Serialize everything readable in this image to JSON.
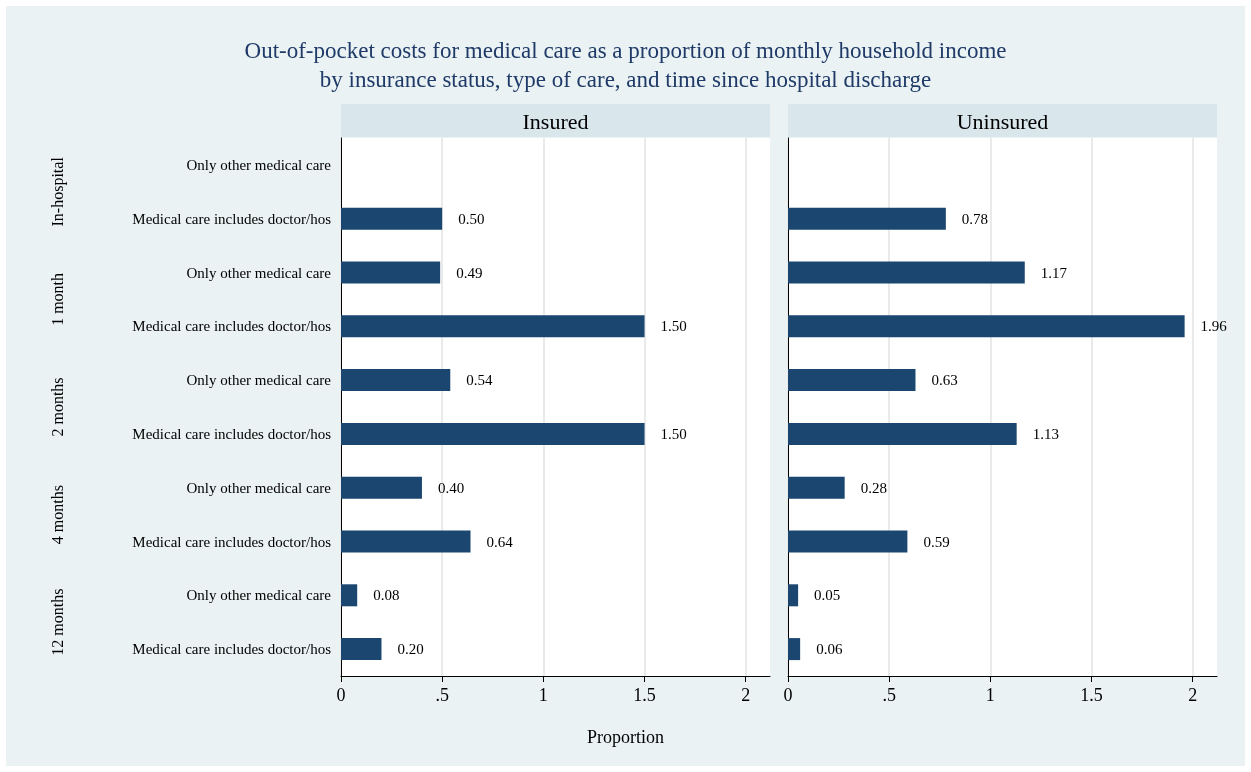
{
  "chart_data": [
    {
      "type": "bar",
      "orientation": "horizontal",
      "title": "Out-of-pocket costs for medical care as a proportion of monthly household income\nby insurance status, type of care, and time since hospital discharge",
      "subtitle": "Insured",
      "xlabel": "Proportion",
      "categories": [
        "Only other medical care",
        "Medical care includes doctor/hos",
        "Only other medical care",
        "Medical care includes doctor/hos",
        "Only other medical care",
        "Medical care includes doctor/hos",
        "Only other medical care",
        "Medical care includes doctor/hos",
        "Only other medical care",
        "Medical care includes doctor/hos"
      ],
      "annotations": [
        "In-hospital",
        "1 month",
        "2 months",
        "4 months",
        "12 months"
      ],
      "values": [
        null,
        0.5,
        0.49,
        1.5,
        0.54,
        1.5,
        0.4,
        0.64,
        0.08,
        0.2
      ],
      "value_labels": [
        null,
        "0.50",
        "0.49",
        "1.50",
        "0.54",
        "1.50",
        "0.40",
        "0.64",
        "0.08",
        "0.20"
      ],
      "color": "#1a4670",
      "xlim": [
        0,
        2.12
      ],
      "xticks": [
        0,
        {
          "value": 0.5,
          "label": ".5"
        },
        1,
        1.5,
        2
      ],
      "grid": "x"
    },
    {
      "type": "bar",
      "orientation": "horizontal",
      "subtitle": "Uninsured",
      "categories": [
        null,
        null,
        null,
        null,
        null,
        null,
        null,
        null,
        null,
        null
      ],
      "values": [
        null,
        0.78,
        1.17,
        1.96,
        0.63,
        1.13,
        0.28,
        0.59,
        0.05,
        0.06
      ],
      "value_labels": [
        null,
        "0.78",
        "1.17",
        "1.96",
        "0.63",
        "1.13",
        "0.28",
        "0.59",
        "0.05",
        "0.06"
      ],
      "color": "#1a4670",
      "xlim": [
        0,
        2.12
      ],
      "xticks": [
        0,
        {
          "value": 0.5,
          "label": ".5"
        },
        1,
        1.5,
        2
      ],
      "grid": "x",
      "tick_labels": "x"
    }
  ]
}
